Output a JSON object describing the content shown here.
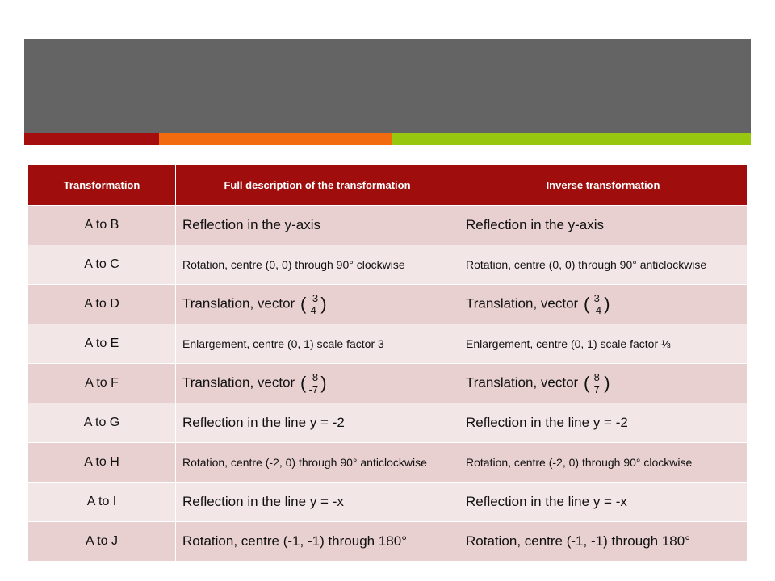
{
  "colors": {
    "title_band": "#646464",
    "accent_red": "#a40e0e",
    "accent_orange": "#f26b0f",
    "accent_green": "#98c70f",
    "header_bg": "#a00d0d",
    "row_odd": "#e8cfd0",
    "row_even": "#f3e6e7"
  },
  "table": {
    "headers": [
      "Transformation",
      "Full description of the transformation",
      "Inverse transformation"
    ],
    "rows": [
      {
        "label": "A to B",
        "desc": "Reflection in the y-axis",
        "inverse": "Reflection in the y-axis"
      },
      {
        "label": "A to C",
        "desc": "Rotation, centre (0, 0) through 90° clockwise",
        "inverse": "Rotation, centre (0, 0) through 90° anticlockwise"
      },
      {
        "label": "A to D",
        "desc": "Translation, vector",
        "desc_vec": [
          "-3",
          "4"
        ],
        "inverse": "Translation, vector",
        "inverse_vec": [
          "3",
          "-4"
        ]
      },
      {
        "label": "A to E",
        "desc": "Enlargement, centre (0, 1) scale factor 3",
        "inverse": "Enlargement, centre (0, 1) scale factor ⅓"
      },
      {
        "label": "A to F",
        "desc": "Translation, vector",
        "desc_vec": [
          "-8",
          "-7"
        ],
        "inverse": "Translation, vector",
        "inverse_vec": [
          "8",
          "7"
        ]
      },
      {
        "label": "A to G",
        "desc": "Reflection in the line y = -2",
        "inverse": "Reflection in the line y = -2"
      },
      {
        "label": "A to H",
        "desc": "Rotation, centre (-2, 0) through 90° anticlockwise",
        "inverse": "Rotation, centre (-2, 0) through 90° clockwise"
      },
      {
        "label": "A to I",
        "desc": "Reflection in the line y = -x",
        "inverse": "Reflection in the line y = -x"
      },
      {
        "label": "A to J",
        "desc": "Rotation, centre (-1, -1) through 180°",
        "inverse": "Rotation, centre (-1, -1) through 180°"
      }
    ]
  }
}
